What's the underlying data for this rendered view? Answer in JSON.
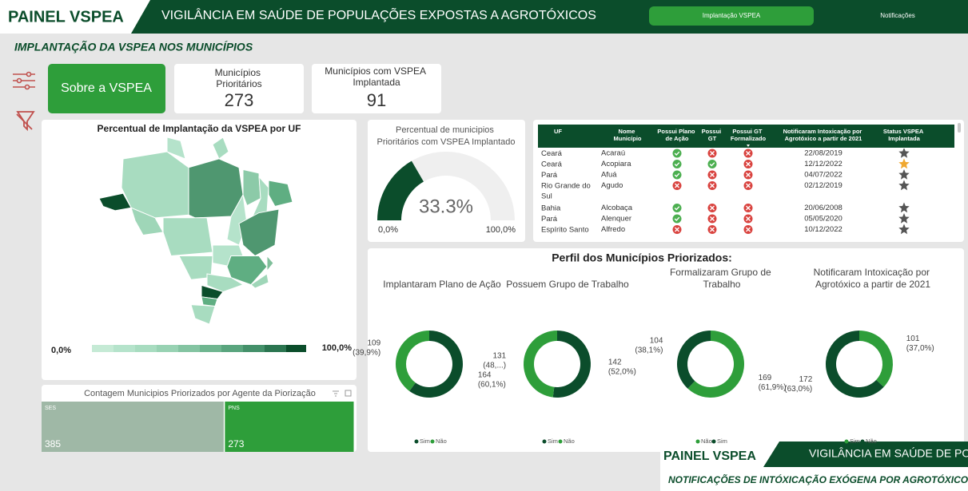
{
  "header": {
    "brand": "PAINEL VSPEA",
    "title": "VIGILÂNCIA EM SAÚDE DE POPULAÇÕES EXPOSTAS A AGROTÓXICOS",
    "nav": [
      "Implantação VSPEA",
      "Notificações"
    ]
  },
  "page_title": "IMPLANTAÇÃO DA VSPEA NOS MUNICÍPIOS",
  "about_button": "Sobre a VSPEA",
  "cards": [
    {
      "label": "Municípios Prioritários",
      "value": 273
    },
    {
      "label": "Municípios com VSPEA Implantada",
      "value": 91
    }
  ],
  "map": {
    "title": "Percentual de Implantação da VSPEA por UF",
    "legend_min": "0,0%",
    "legend_max": "100,0%"
  },
  "gauge": {
    "title": "Percentual de municipios Prioritários com VSPEA Implantado",
    "value": 33.3,
    "value_label": "33.3%",
    "range": [
      {
        "value": 0,
        "label": "0,0%"
      },
      {
        "value": 100,
        "label": "100,0%"
      }
    ]
  },
  "table": {
    "columns": [
      "UF",
      "Nome Município",
      "Possui Plano de Ação",
      "Possui GT",
      "Possui GT Formalizado",
      "Notificaram Intoxicação por Agrotóxico a partir de 2021",
      "Status VSPEA Implantada"
    ],
    "rows": [
      {
        "uf": "Ceará",
        "municipio": "Acaraú",
        "plano": true,
        "gt": false,
        "gt_formalizado": false,
        "notificacao": "22/08/2019",
        "vspea_implantada": false
      },
      {
        "uf": "Ceará",
        "municipio": "Acopiara",
        "plano": true,
        "gt": true,
        "gt_formalizado": false,
        "notificacao": "12/12/2022",
        "vspea_implantada": true
      },
      {
        "uf": "Pará",
        "municipio": "Afuá",
        "plano": true,
        "gt": false,
        "gt_formalizado": false,
        "notificacao": "04/07/2022",
        "vspea_implantada": false
      },
      {
        "uf": "Rio Grande do Sul",
        "municipio": "Agudo",
        "plano": false,
        "gt": false,
        "gt_formalizado": false,
        "notificacao": "02/12/2019",
        "vspea_implantada": false
      },
      {
        "uf": "Bahia",
        "municipio": "Alcobaça",
        "plano": true,
        "gt": false,
        "gt_formalizado": false,
        "notificacao": "20/06/2008",
        "vspea_implantada": false
      },
      {
        "uf": "Pará",
        "municipio": "Alenquer",
        "plano": true,
        "gt": false,
        "gt_formalizado": false,
        "notificacao": "05/05/2020",
        "vspea_implantada": false
      },
      {
        "uf": "Espírito Santo",
        "municipio": "Alfredo",
        "plano": false,
        "gt": false,
        "gt_formalizado": false,
        "notificacao": "10/12/2022",
        "vspea_implantada": false
      }
    ]
  },
  "profile": {
    "title": "Perfil dos Municípios Priorizados:",
    "donuts": [
      {
        "title": "Implantaram Plano de Ação",
        "segments": [
          {
            "name": "Sim",
            "value": 164,
            "percent": 60.1,
            "percent_label": "(60,1%)",
            "color": "#0b4d2b"
          },
          {
            "name": "Não",
            "value": 109,
            "percent": 39.9,
            "percent_label": "(39,9%)",
            "color": "#2e9e3a"
          }
        ]
      },
      {
        "title": "Possuem Grupo de Trabalho",
        "segments": [
          {
            "name": "Sim",
            "value": 142,
            "percent": 52.0,
            "percent_label": "(52,0%)",
            "color": "#0b4d2b"
          },
          {
            "name": "Não",
            "value": 131,
            "percent": 48.0,
            "percent_label": "(48,...)",
            "color": "#2e9e3a"
          }
        ]
      },
      {
        "title": "Formalizaram Grupo de Trabalho",
        "segments": [
          {
            "name": "Não",
            "value": 169,
            "percent": 61.9,
            "percent_label": "(61,9%)",
            "color": "#2e9e3a"
          },
          {
            "name": "Sim",
            "value": 104,
            "percent": 38.1,
            "percent_label": "(38,1%)",
            "color": "#0b4d2b"
          }
        ]
      },
      {
        "title": "Notificaram Intoxicação por Agrotóxico a partir de 2021",
        "segments": [
          {
            "name": "Sim",
            "value": 101,
            "percent": 37.0,
            "percent_label": "(37,0%)",
            "color": "#2e9e3a"
          },
          {
            "name": "Não",
            "value": 172,
            "percent": 63.0,
            "percent_label": "(63,0%)",
            "color": "#0b4d2b"
          }
        ]
      }
    ]
  },
  "treemap": {
    "title": "Contagem Municipios Priorizados por Agente da Piorização",
    "items": [
      {
        "name": "SES",
        "value": 385,
        "color": "#9fb8a6"
      },
      {
        "name": "PNS",
        "value": 273,
        "color": "#2e9e3a"
      }
    ]
  },
  "preview": {
    "brand": "PAINEL VSPEA",
    "title": "VIGILÂNCIA EM SAÚDE DE POPULAÇÕES EXPOSTAS A AGROTÓXICOS",
    "subtitle": "NOTIFICAÇÕES DE INTÓXICAÇÃO EXÓGENA POR AGROTÓXICOS"
  }
}
